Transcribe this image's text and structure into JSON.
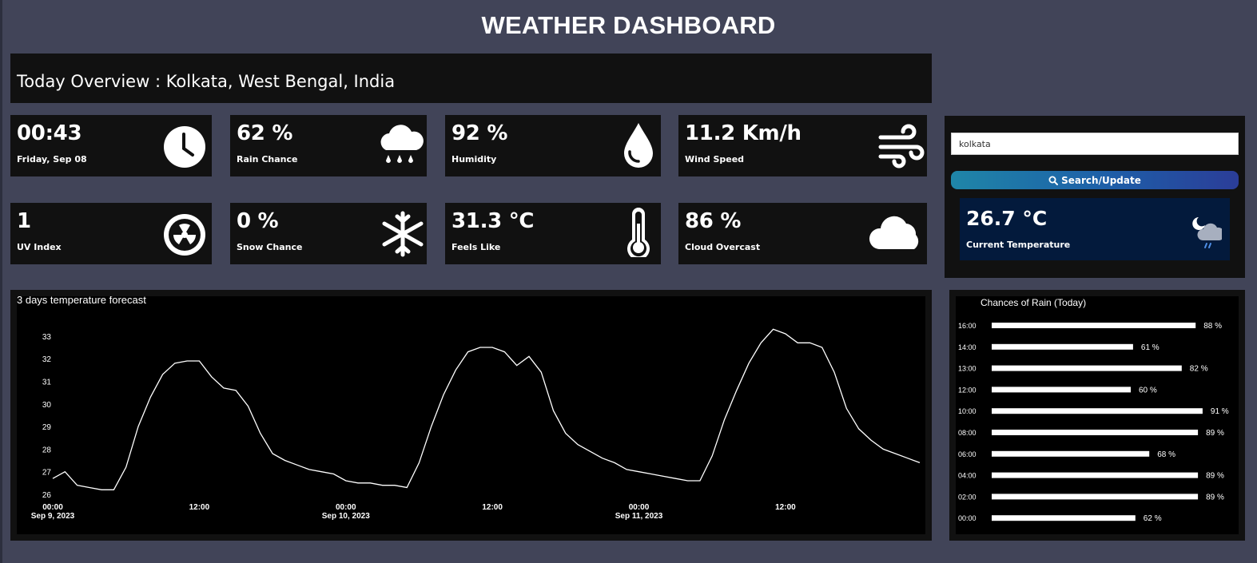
{
  "header": {
    "title": "WEATHER DASHBOARD"
  },
  "overview": {
    "text": "Today Overview : Kolkata, West Bengal, India"
  },
  "cards": [
    {
      "value": "00:43",
      "label": "Friday, Sep 08",
      "icon": "clock-icon"
    },
    {
      "value": "62 %",
      "label": "Rain Chance",
      "icon": "rain-cloud-icon"
    },
    {
      "value": "92 %",
      "label": "Humidity",
      "icon": "water-drop-icon"
    },
    {
      "value": "11.2 Km/h",
      "label": "Wind Speed",
      "icon": "wind-icon"
    },
    {
      "value": "1",
      "label": "UV Index",
      "icon": "radiation-icon"
    },
    {
      "value": "0 %",
      "label": "Snow Chance",
      "icon": "snowflake-icon"
    },
    {
      "value": "31.3 °C",
      "label": "Feels Like",
      "icon": "thermometer-icon"
    },
    {
      "value": "86 %",
      "label": "Cloud Overcast",
      "icon": "cloud-icon"
    }
  ],
  "search": {
    "value": "kolkata",
    "button_label": "Search/Update",
    "icon": "search-icon"
  },
  "current": {
    "value": "26.7 °C",
    "label": "Current Temperature",
    "icon": "night-rain-cloud-icon"
  },
  "chart_data": [
    {
      "type": "line",
      "title": "3 days temperature forecast",
      "x_unit": "hour",
      "x_start": "Sep 9, 2023 00:00",
      "x_ticks": [
        {
          "hour": 0,
          "label": "00:00",
          "sub": "Sep 9, 2023"
        },
        {
          "hour": 12,
          "label": "12:00",
          "sub": ""
        },
        {
          "hour": 24,
          "label": "00:00",
          "sub": "Sep 10, 2023"
        },
        {
          "hour": 36,
          "label": "12:00",
          "sub": ""
        },
        {
          "hour": 48,
          "label": "00:00",
          "sub": "Sep 11, 2023"
        },
        {
          "hour": 60,
          "label": "12:00",
          "sub": ""
        }
      ],
      "y_ticks": [
        26,
        27,
        28,
        29,
        30,
        31,
        32,
        33
      ],
      "ylim": [
        26,
        33.7
      ],
      "xlim": [
        0,
        71
      ],
      "series": [
        {
          "values": [
            26.7,
            27.0,
            26.4,
            26.3,
            26.2,
            26.2,
            27.2,
            29.0,
            30.3,
            31.3,
            31.8,
            31.9,
            31.9,
            31.2,
            30.7,
            30.6,
            29.9,
            28.7,
            27.8,
            27.5,
            27.3,
            27.1,
            27.0,
            26.9,
            26.6,
            26.5,
            26.5,
            26.4,
            26.4,
            26.3,
            27.4,
            29.0,
            30.4,
            31.5,
            32.3,
            32.5,
            32.5,
            32.3,
            31.7,
            32.1,
            31.4,
            29.7,
            28.7,
            28.2,
            27.9,
            27.6,
            27.4,
            27.1,
            27.0,
            26.9,
            26.8,
            26.7,
            26.6,
            26.6,
            27.7,
            29.3,
            30.6,
            31.8,
            32.7,
            33.3,
            33.1,
            32.7,
            32.7,
            32.5,
            31.4,
            29.8,
            28.9,
            28.4,
            28.0,
            27.8,
            27.6,
            27.4
          ]
        }
      ]
    },
    {
      "type": "bar",
      "orientation": "horizontal",
      "title": "Chances of Rain (Today)",
      "categories": [
        "16:00",
        "14:00",
        "13:00",
        "12:00",
        "10:00",
        "08:00",
        "06:00",
        "04:00",
        "02:00",
        "00:00"
      ],
      "values": [
        88,
        61,
        82,
        60,
        91,
        89,
        68,
        89,
        89,
        62
      ],
      "value_labels": [
        "88 %",
        "61 %",
        "82 %",
        "60 %",
        "91 %",
        "89 %",
        "68 %",
        "89 %",
        "89 %",
        "62 %"
      ],
      "xlim": [
        0,
        100
      ]
    }
  ]
}
